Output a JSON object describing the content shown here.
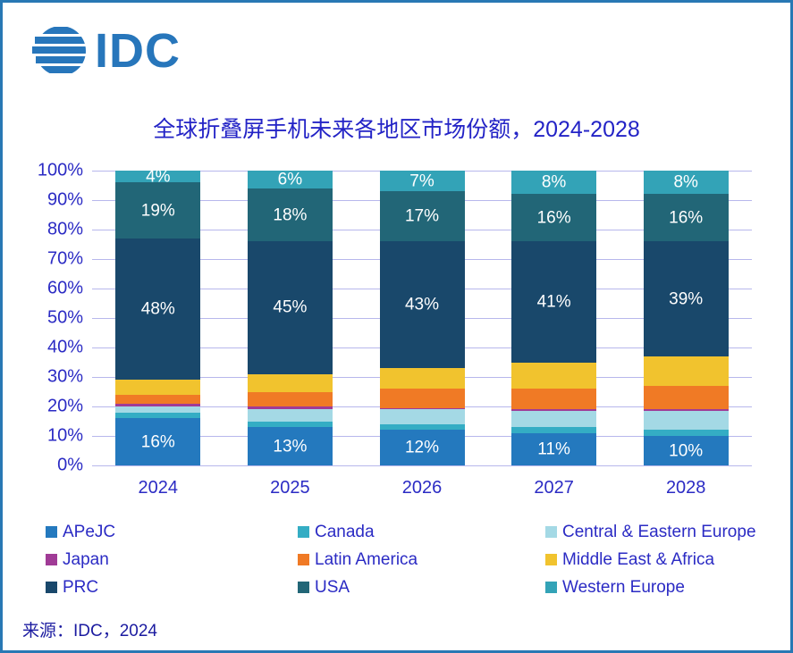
{
  "logo": {
    "text": "IDC",
    "icon": "idc-globe-icon"
  },
  "title": "全球折叠屏手机未来各地区市场份额，2024-2028",
  "source": "来源：IDC，2024",
  "colors": {
    "border": "#2878B4",
    "logo_blue": "#2776BB",
    "title_text": "#2323C6",
    "axis_text": "#2B2BC4",
    "gridline": "#B7B7EC",
    "bar_label_text": "#FFFFFF",
    "source_text": "#1B1BA0"
  },
  "chart_data": {
    "type": "bar",
    "stacked": true,
    "unit": "%",
    "title": "全球折叠屏手机未来各地区市场份额，2024-2028",
    "categories": [
      "2024",
      "2025",
      "2026",
      "2027",
      "2028"
    ],
    "series": [
      {
        "name": "APeJC",
        "color": "#2479BE",
        "labeled": true,
        "values": [
          16,
          13,
          12,
          11,
          10
        ]
      },
      {
        "name": "Canada",
        "color": "#34ADC4",
        "labeled": false,
        "values": [
          2,
          2,
          2,
          2,
          2
        ]
      },
      {
        "name": "Central & Eastern Europe",
        "color": "#A4D9E5",
        "labeled": false,
        "values": [
          2,
          4,
          5,
          5.5,
          6.5
        ]
      },
      {
        "name": "Japan",
        "color": "#A03B96",
        "labeled": false,
        "values": [
          1,
          1,
          0.5,
          0.5,
          0.5
        ]
      },
      {
        "name": "Latin America",
        "color": "#F07A25",
        "labeled": false,
        "values": [
          3,
          5,
          6.5,
          7,
          8
        ]
      },
      {
        "name": "Middle East & Africa",
        "color": "#F1C32E",
        "labeled": false,
        "values": [
          5,
          6,
          7,
          9,
          10
        ]
      },
      {
        "name": "PRC",
        "color": "#19486B",
        "labeled": true,
        "values": [
          48,
          45,
          43,
          41,
          39
        ]
      },
      {
        "name": "USA",
        "color": "#226677",
        "labeled": true,
        "values": [
          19,
          18,
          17,
          16,
          16
        ]
      },
      {
        "name": "Western Europe",
        "color": "#33A3B7",
        "labeled": true,
        "values": [
          4,
          6,
          7,
          8,
          8
        ]
      }
    ],
    "y_ticks": [
      "0%",
      "10%",
      "20%",
      "30%",
      "40%",
      "50%",
      "60%",
      "70%",
      "80%",
      "90%",
      "100%"
    ],
    "ylim": [
      0,
      100
    ],
    "grid": true,
    "legend_position": "bottom",
    "legend_order": [
      "APeJC",
      "Canada",
      "Central & Eastern Europe",
      "Japan",
      "Latin America",
      "Middle East & Africa",
      "PRC",
      "USA",
      "Western Europe"
    ]
  }
}
